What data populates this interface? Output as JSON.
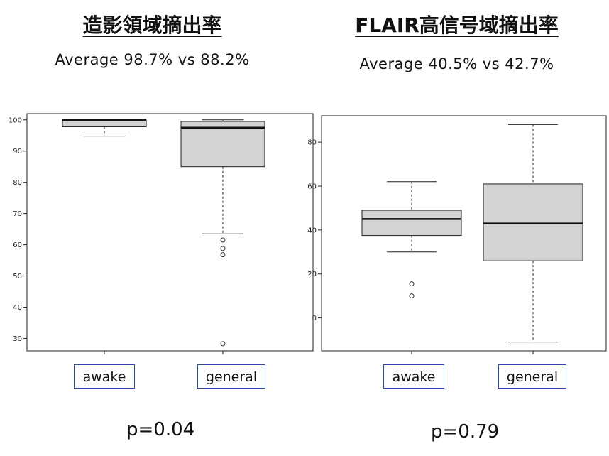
{
  "panels": [
    {
      "title": "造影領域摘出率",
      "average_text": "Average  98.7% vs 88.2%",
      "p_value_text": "p=0.04",
      "categories": [
        "awake",
        "general"
      ]
    },
    {
      "title": "FLAIR高信号域摘出率",
      "average_text": "Average  40.5% vs 42.7%",
      "p_value_text": "p=0.79",
      "categories": [
        "awake",
        "general"
      ]
    }
  ],
  "chart_data": [
    {
      "type": "boxplot",
      "title": "造影領域摘出率",
      "xlabel": "",
      "ylabel": "",
      "categories": [
        "awake",
        "general"
      ],
      "ylim": [
        26,
        102
      ],
      "yticks": [
        30,
        40,
        50,
        60,
        70,
        80,
        90,
        100
      ],
      "box_color": "#d3d3d3",
      "series": [
        {
          "category": "awake",
          "whisker_low": 94.8,
          "q1": 97.8,
          "median": 100,
          "q3": 100,
          "whisker_high": 100,
          "outliers": []
        },
        {
          "category": "general",
          "whisker_low": 63.5,
          "q1": 85.0,
          "median": 97.5,
          "q3": 99.5,
          "whisker_high": 100,
          "outliers": [
            61.5,
            58.8,
            56.8,
            28.3
          ]
        }
      ]
    },
    {
      "type": "boxplot",
      "title": "FLAIR高信号域摘出率",
      "xlabel": "",
      "ylabel": "",
      "categories": [
        "awake",
        "general"
      ],
      "ylim": [
        -15,
        92
      ],
      "yticks": [
        0,
        20,
        40,
        60,
        80
      ],
      "box_color": "#d3d3d3",
      "series": [
        {
          "category": "awake",
          "whisker_low": 30,
          "q1": 37.5,
          "median": 45,
          "q3": 49,
          "whisker_high": 62,
          "outliers": [
            15.5,
            10
          ]
        },
        {
          "category": "general",
          "whisker_low": -11,
          "q1": 26,
          "median": 43,
          "q3": 61,
          "whisker_high": 88,
          "outliers": []
        }
      ]
    }
  ]
}
